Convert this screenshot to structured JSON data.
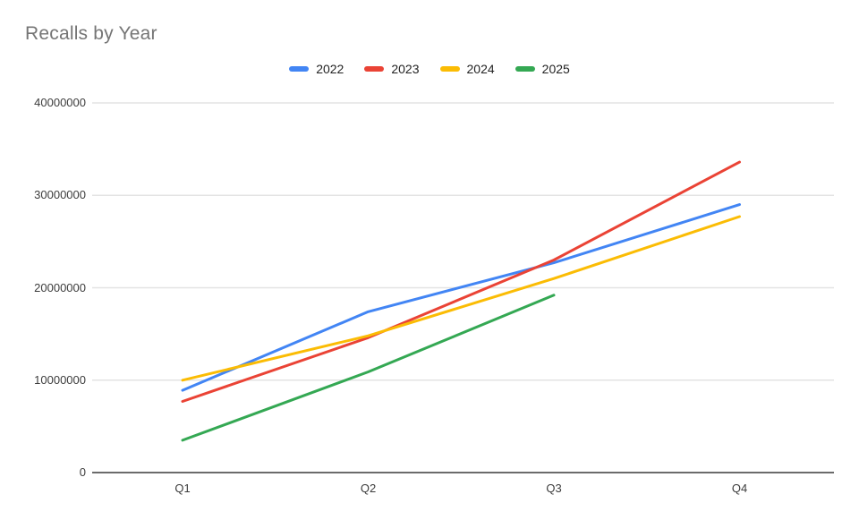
{
  "chart_data": {
    "type": "line",
    "title": "Recalls by Year",
    "categories": [
      "Q1",
      "Q2",
      "Q3",
      "Q4"
    ],
    "series": [
      {
        "name": "2022",
        "color": "#4285F4",
        "values": [
          8900000,
          17400000,
          22700000,
          29000000
        ]
      },
      {
        "name": "2023",
        "color": "#EA4335",
        "values": [
          7700000,
          14600000,
          23000000,
          33600000
        ]
      },
      {
        "name": "2024",
        "color": "#FBBC04",
        "values": [
          10000000,
          14800000,
          21000000,
          27700000
        ]
      },
      {
        "name": "2025",
        "color": "#34A853",
        "values": [
          3500000,
          10900000,
          19200000,
          null
        ]
      }
    ],
    "xlabel": "",
    "ylabel": "",
    "ylim": [
      0,
      40000000
    ],
    "y_ticks": [
      0,
      10000000,
      20000000,
      30000000,
      40000000
    ],
    "y_tick_labels": [
      "0",
      "10000000",
      "20000000",
      "30000000",
      "40000000"
    ],
    "grid": true,
    "legend_position": "top"
  },
  "colors": {
    "background": "#ffffff",
    "title": "#757575",
    "legend_text": "#222222",
    "tick_text": "#3c3c3c",
    "grid": "#e3e3e3",
    "axis": "#6b6b6b"
  }
}
